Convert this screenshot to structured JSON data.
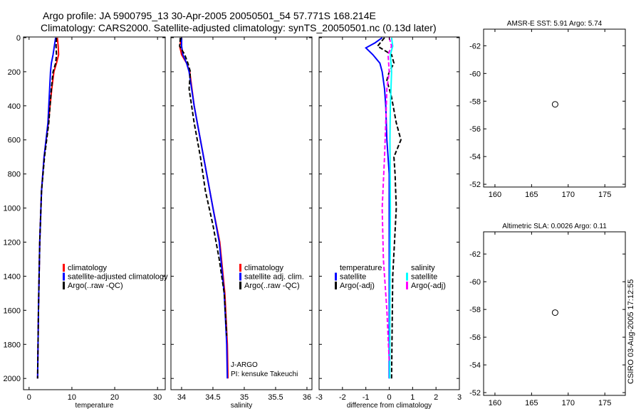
{
  "title_line1": "Argo profile: JA 5900795_13 30-Apr-2005 20050501_54 57.771S 168.214E",
  "title_line2": "Climatology: CARS2000. Satellite-adjusted climatology: synTS_20050501.nc (0.13d later)",
  "footer_stamp": "CSIRO 03-Aug-2005 17:12:55",
  "colors": {
    "climatology": "#ff0000",
    "satellite": "#0000ff",
    "argo": "#000000",
    "sal_satellite": "#00ffff",
    "sal_argo": "#ff00ff"
  },
  "chart_data": [
    {
      "type": "line",
      "id": "temperature",
      "xlabel": "temperature",
      "xlim": [
        -1.3,
        31.8
      ],
      "ylim": [
        -4,
        2066
      ],
      "xticks": [
        "0",
        "10",
        "20",
        "30"
      ],
      "xtick_values": [
        0,
        10,
        20,
        30
      ],
      "yticks": [
        "0",
        "200",
        "400",
        "600",
        "800",
        "1000",
        "1200",
        "1400",
        "1600",
        "1800",
        "2000"
      ],
      "ytick_values": [
        0,
        200,
        400,
        600,
        800,
        1000,
        1200,
        1400,
        1600,
        1800,
        2000
      ],
      "legend": [
        "climatology",
        "satellite-adjusted climatology",
        "Argo(..raw -QC)"
      ],
      "series": [
        {
          "name": "climatology",
          "color": "#ff0000",
          "dash": false,
          "depth": [
            0,
            50,
            100,
            150,
            200,
            300,
            500,
            700,
            900,
            1200,
            1600,
            2000
          ],
          "values": [
            6.6,
            6.8,
            6.9,
            6.4,
            5.8,
            5.3,
            4.5,
            3.5,
            2.9,
            2.5,
            2.2,
            2.0
          ]
        },
        {
          "name": "satellite-adjusted climatology",
          "color": "#0000ff",
          "dash": false,
          "depth": [
            0,
            50,
            100,
            150,
            200,
            300,
            500,
            700,
            900,
            1200,
            1600,
            2000
          ],
          "values": [
            6.2,
            5.9,
            5.6,
            5.2,
            5.0,
            4.8,
            4.4,
            3.5,
            2.9,
            2.5,
            2.2,
            2.0
          ]
        },
        {
          "name": "Argo(..raw -QC)",
          "color": "#000000",
          "dash": true,
          "depth": [
            0,
            50,
            100,
            150,
            200,
            300,
            500,
            700,
            900,
            1200,
            1600,
            2000
          ],
          "values": [
            6.4,
            6.3,
            6.4,
            6.2,
            5.6,
            5.2,
            4.6,
            3.6,
            2.9,
            2.5,
            2.2,
            2.0
          ]
        }
      ]
    },
    {
      "type": "line",
      "id": "salinity",
      "xlabel": "salinity",
      "xlim": [
        33.83,
        36.08
      ],
      "ylim": [
        -4,
        2066
      ],
      "xticks": [
        "34",
        "34.5",
        "35",
        "35.5",
        "36"
      ],
      "xtick_values": [
        34,
        34.5,
        35,
        35.5,
        36
      ],
      "legend": [
        "climatology",
        "satellite adj. clim.",
        "Argo(..raw -QC)"
      ],
      "annotation": [
        "J-ARGO",
        "PI: kensuke Takeuchi"
      ],
      "series": [
        {
          "name": "climatology",
          "color": "#ff0000",
          "dash": false,
          "depth": [
            0,
            50,
            100,
            150,
            200,
            400,
            600,
            800,
            1000,
            1200,
            1500,
            1800,
            2000
          ],
          "values": [
            34.0,
            33.97,
            34.0,
            34.08,
            34.13,
            34.2,
            34.3,
            34.4,
            34.5,
            34.61,
            34.69,
            34.73,
            34.74
          ]
        },
        {
          "name": "satellite adj. clim.",
          "color": "#0000ff",
          "dash": false,
          "depth": [
            0,
            50,
            100,
            150,
            200,
            400,
            600,
            800,
            1000,
            1200,
            1500,
            1800,
            2000
          ],
          "values": [
            34.0,
            34.0,
            34.02,
            34.08,
            34.12,
            34.2,
            34.3,
            34.4,
            34.5,
            34.6,
            34.68,
            34.72,
            34.73
          ]
        },
        {
          "name": "Argo(..raw -QC)",
          "color": "#000000",
          "dash": true,
          "depth": [
            0,
            50,
            100,
            150,
            200,
            300,
            500,
            700,
            900,
            1100,
            1300,
            1500,
            1750
          ],
          "values": [
            33.98,
            33.97,
            34.05,
            34.1,
            34.14,
            34.12,
            34.2,
            34.3,
            34.38,
            34.5,
            34.6,
            34.68,
            34.72
          ]
        }
      ]
    },
    {
      "type": "line",
      "id": "difference",
      "xlabel": "difference from climatology",
      "xlim": [
        -3,
        3
      ],
      "ylim": [
        -4,
        2066
      ],
      "xticks": [
        "-3",
        "-2",
        "-1",
        "0",
        "1",
        "2",
        "3"
      ],
      "xtick_values": [
        -3,
        -2,
        -1,
        0,
        1,
        2,
        3
      ],
      "legend_temperature": [
        "temperature",
        "satellite",
        "Argo(-adj)"
      ],
      "legend_salinity": [
        "salinity",
        "satellite",
        "Argo(-adj)"
      ],
      "series": [
        {
          "name": "temperature satellite",
          "color": "#0000ff",
          "dash": false,
          "depth": [
            0,
            30,
            60,
            100,
            150,
            200,
            300,
            400,
            600,
            800,
            1000,
            1400,
            2000
          ],
          "values": [
            -0.3,
            -0.6,
            -1.0,
            -0.7,
            -0.4,
            -0.3,
            -0.2,
            -0.15,
            -0.1,
            0,
            0,
            0,
            0
          ]
        },
        {
          "name": "temperature Argo(-adj)",
          "color": "#000000",
          "dash": true,
          "depth": [
            0,
            50,
            100,
            150,
            200,
            250,
            350,
            500,
            600,
            700,
            800,
            1000,
            1400,
            2000
          ],
          "values": [
            -0.2,
            -0.5,
            0.1,
            0.2,
            0.0,
            -0.1,
            0.1,
            0.3,
            0.5,
            0.2,
            0.25,
            0.3,
            0.15,
            0.1
          ]
        },
        {
          "name": "salinity satellite",
          "color": "#00ffff",
          "dash": false,
          "depth": [
            0,
            50,
            100,
            200,
            400,
            600,
            1000,
            1500,
            2000
          ],
          "values": [
            0.1,
            0.15,
            0.05,
            0.1,
            0.05,
            0.03,
            0.05,
            0.03,
            0.02
          ]
        },
        {
          "name": "salinity Argo(-adj)",
          "color": "#ff00ff",
          "dash": true,
          "depth": [
            0,
            50,
            100,
            200,
            300,
            500,
            700,
            1000,
            1300,
            1600,
            1900
          ],
          "values": [
            0.0,
            0.1,
            -0.05,
            0.0,
            -0.1,
            -0.15,
            -0.2,
            -0.3,
            -0.25,
            -0.1,
            0.0
          ]
        }
      ]
    },
    {
      "type": "heatmap",
      "id": "sst_map",
      "title": "AMSR-E SST: 5.91 Argo: 5.74",
      "xlim": [
        158.45,
        177.8
      ],
      "ylim": [
        -63.2,
        -51.8
      ],
      "xticks": [
        "160",
        "165",
        "170",
        "175"
      ],
      "xtick_values": [
        160,
        165,
        170,
        175
      ],
      "yticks": [
        "-52",
        "-54",
        "-56",
        "-58",
        "-60",
        "-62"
      ],
      "ytick_values": [
        -52,
        -54,
        -56,
        -58,
        -60,
        -62
      ],
      "data_lat_min": -60,
      "marker": {
        "lon": 168.214,
        "lat": -57.771
      }
    },
    {
      "type": "heatmap",
      "id": "sla_map",
      "title": "Altimetric SLA: 0.0026 Argo: 0.11",
      "xlim": [
        158.45,
        177.8
      ],
      "ylim": [
        -63.6,
        -51.8
      ],
      "xticks": [
        "160",
        "165",
        "170",
        "175"
      ],
      "xtick_values": [
        160,
        165,
        170,
        175
      ],
      "yticks": [
        "-52",
        "-54",
        "-56",
        "-58",
        "-60",
        "-62"
      ],
      "ytick_values": [
        -52,
        -54,
        -56,
        -58,
        -60,
        -62
      ],
      "data_lat_min": -60,
      "marker": {
        "lon": 168.214,
        "lat": -57.771
      }
    }
  ]
}
